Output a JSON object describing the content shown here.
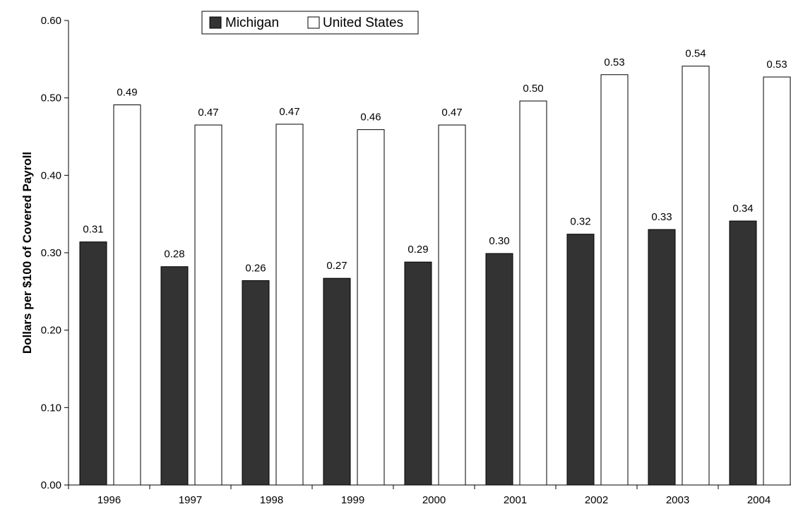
{
  "chart_data": {
    "type": "bar",
    "title": "",
    "xlabel": "",
    "ylabel": "Dollars per $100 of Covered Payroll",
    "ylim": [
      0,
      0.6
    ],
    "yticks": [
      "0.00",
      "0.10",
      "0.20",
      "0.30",
      "0.40",
      "0.50",
      "0.60"
    ],
    "categories": [
      "1996",
      "1997",
      "1998",
      "1999",
      "2000",
      "2001",
      "2002",
      "2003",
      "2004"
    ],
    "series": [
      {
        "name": "Michigan",
        "color": "#333333",
        "values": [
          0.314,
          0.282,
          0.264,
          0.267,
          0.288,
          0.299,
          0.324,
          0.33,
          0.341
        ],
        "labels": [
          "0.31",
          "0.28",
          "0.26",
          "0.27",
          "0.29",
          "0.30",
          "0.32",
          "0.33",
          "0.34"
        ]
      },
      {
        "name": "United States",
        "color": "#ffffff",
        "values": [
          0.491,
          0.465,
          0.466,
          0.459,
          0.465,
          0.496,
          0.53,
          0.541,
          0.527
        ],
        "labels": [
          "0.49",
          "0.47",
          "0.47",
          "0.46",
          "0.47",
          "0.50",
          "0.53",
          "0.54",
          "0.53"
        ]
      }
    ],
    "grid": false,
    "legend": "top-left"
  }
}
